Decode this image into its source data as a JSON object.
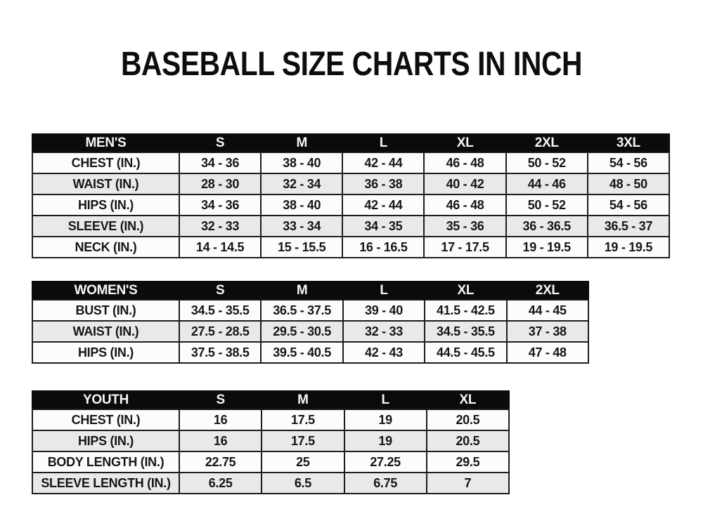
{
  "page": {
    "title": "BASEBALL SIZE CHARTS IN INCH",
    "background_color": "#ffffff"
  },
  "colors": {
    "header_bg": "#0b0b0b",
    "header_text": "#f6f6f6",
    "row_white": "#fcfcfc",
    "row_gray": "#e9e9e9",
    "border": "#1d1d1d",
    "text": "#161616"
  },
  "chart_data": [
    {
      "type": "table",
      "name": "mens",
      "title": "MEN'S",
      "header": [
        "MEN'S",
        "S",
        "M",
        "L",
        "XL",
        "2XL",
        "3XL"
      ],
      "rows": [
        [
          "CHEST (IN.)",
          "34 - 36",
          "38 - 40",
          "42 - 44",
          "46 - 48",
          "50 - 52",
          "54 - 56"
        ],
        [
          "WAIST (IN.)",
          "28 - 30",
          "32 - 34",
          "36 - 38",
          "40 - 42",
          "44 - 46",
          "48 - 50"
        ],
        [
          "HIPS (IN.)",
          "34 - 36",
          "38 - 40",
          "42 - 44",
          "46 - 48",
          "50 - 52",
          "54 - 56"
        ],
        [
          "SLEEVE (IN.)",
          "32 - 33",
          "33 - 34",
          "34 - 35",
          "35 - 36",
          "36 - 36.5",
          "36.5 - 37"
        ],
        [
          "NECK (IN.)",
          "14 - 14.5",
          "15 - 15.5",
          "16 - 16.5",
          "17 - 17.5",
          "19 - 19.5",
          "19 - 19.5"
        ]
      ]
    },
    {
      "type": "table",
      "name": "womens",
      "title": "WOMEN'S",
      "header": [
        "WOMEN'S",
        "S",
        "M",
        "L",
        "XL",
        "2XL"
      ],
      "rows": [
        [
          "BUST (IN.)",
          "34.5 - 35.5",
          "36.5 - 37.5",
          "39 - 40",
          "41.5 - 42.5",
          "44 - 45"
        ],
        [
          "WAIST (IN.)",
          "27.5 - 28.5",
          "29.5 - 30.5",
          "32 - 33",
          "34.5 - 35.5",
          "37 - 38"
        ],
        [
          "HIPS (IN.)",
          "37.5 - 38.5",
          "39.5 - 40.5",
          "42 - 43",
          "44.5 - 45.5",
          "47 - 48"
        ]
      ]
    },
    {
      "type": "table",
      "name": "youth",
      "title": "YOUTH",
      "header": [
        "YOUTH",
        "S",
        "M",
        "L",
        "XL"
      ],
      "rows": [
        [
          "CHEST (IN.)",
          "16",
          "17.5",
          "19",
          "20.5"
        ],
        [
          "HIPS (IN.)",
          "16",
          "17.5",
          "19",
          "20.5"
        ],
        [
          "BODY LENGTH (IN.)",
          "22.75",
          "25",
          "27.25",
          "29.5"
        ],
        [
          "SLEEVE LENGTH (IN.)",
          "6.25",
          "6.5",
          "6.75",
          "7"
        ]
      ]
    }
  ]
}
